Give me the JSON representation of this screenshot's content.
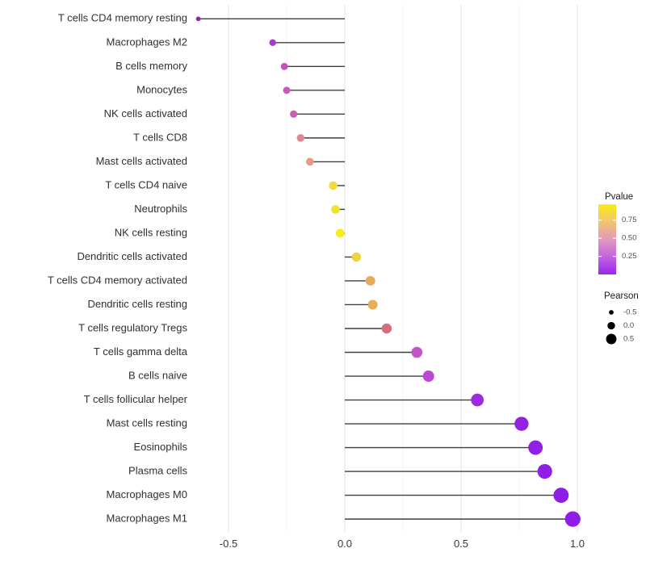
{
  "chart_data": {
    "type": "lollipop",
    "orientation": "horizontal",
    "title": "",
    "xlabel": "",
    "ylabel": "",
    "x_ticks": [
      -0.5,
      0.0,
      0.5,
      1.0
    ],
    "x_tick_labels": [
      "-0.5",
      "0.0",
      "0.5",
      "1.0"
    ],
    "x_minor_ticks": [
      -0.25,
      0.25,
      0.75
    ],
    "xlim": [
      -0.65,
      1.05
    ],
    "grid": "vertical-only",
    "baseline_x": 0.0,
    "legend_position": "right",
    "categories": [
      "T cells CD4 memory resting",
      "Macrophages M2",
      "B cells memory",
      "Monocytes",
      "NK cells activated",
      "T cells CD8",
      "Mast cells activated",
      "T cells CD4 naive",
      "Neutrophils",
      "NK cells resting",
      "Dendritic cells activated",
      "T cells CD4 memory activated",
      "Dendritic cells resting",
      "T cells regulatory  Tregs",
      "T cells gamma delta",
      "B cells naive",
      "T cells follicular helper",
      "Mast cells resting",
      "Eosinophils",
      "Plasma cells",
      "Macrophages M0",
      "Macrophages M1"
    ],
    "series": [
      {
        "name": "Pearson",
        "values": [
          -0.63,
          -0.31,
          -0.26,
          -0.25,
          -0.22,
          -0.19,
          -0.15,
          -0.05,
          -0.04,
          -0.02,
          0.05,
          0.11,
          0.12,
          0.18,
          0.31,
          0.36,
          0.57,
          0.76,
          0.82,
          0.86,
          0.93,
          0.98
        ]
      }
    ],
    "point_colors": [
      "#8A24C0",
      "#A93BC9",
      "#C351C3",
      "#C658BE",
      "#CB5FAE",
      "#D98799",
      "#E69C80",
      "#F0DC3F",
      "#F2E135",
      "#F6ED1A",
      "#EFD243",
      "#E6AC5E",
      "#E6AD5B",
      "#D56F7E",
      "#C353C8",
      "#BB48D0",
      "#9B2BDB",
      "#9421E2",
      "#9120E4",
      "#8F1FE5",
      "#8E1EE6",
      "#8D1DE7"
    ],
    "pvalue_estimated": [
      0.02,
      0.15,
      0.25,
      0.27,
      0.33,
      0.45,
      0.57,
      0.8,
      0.84,
      0.93,
      0.77,
      0.63,
      0.62,
      0.42,
      0.22,
      0.17,
      0.05,
      0.02,
      0.015,
      0.01,
      0.005,
      0.003
    ],
    "color_legend": {
      "title": "Pvalue",
      "tick_labels": [
        "0.75",
        "0.50",
        "0.25"
      ],
      "tick_values": [
        0.75,
        0.5,
        0.25
      ],
      "domain_top": 0.97,
      "domain_bottom": 0.0,
      "gradient_top_to_bottom": [
        "#F9EE14",
        "#F2C36E",
        "#E299BE",
        "#C364DE",
        "#9D24EC"
      ]
    },
    "size_legend": {
      "title": "Pearson",
      "labels": [
        "-0.5",
        "0.0",
        "0.5"
      ],
      "values": [
        -0.5,
        0.0,
        0.5
      ]
    }
  },
  "colors": {
    "background": "#FFFFFF",
    "stick": "#3F3F3F",
    "grid_major": "#E4E4E4",
    "grid_minor": "#F3F3F3",
    "axis_text": "#373737",
    "category_text": "#303030",
    "legend_title_text": "#1A1A1A",
    "legend_label_text": "#4D4D4D",
    "size_legend_dot": "#000000",
    "legend_tick_mark": "#FFFFFF"
  }
}
